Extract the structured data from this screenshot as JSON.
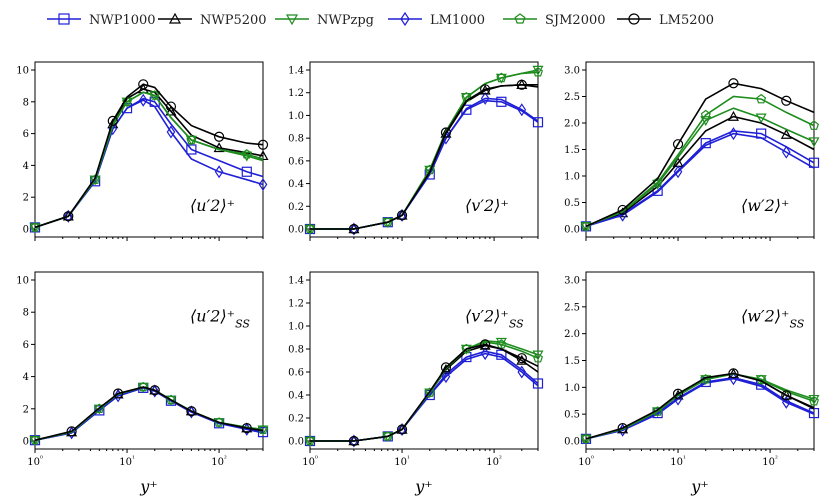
{
  "legend": [
    {
      "name": "NWP1000",
      "color": "#1f1fd6",
      "marker": "square"
    },
    {
      "name": "NWP5200",
      "color": "#000000",
      "marker": "triangle-up"
    },
    {
      "name": "NWPzpg",
      "color": "#1e8c1e",
      "marker": "triangle-down"
    },
    {
      "name": "LM1000",
      "color": "#1f1fd6",
      "marker": "diamond"
    },
    {
      "name": "SJM2000",
      "color": "#1e8c1e",
      "marker": "pentagon"
    },
    {
      "name": "LM5200",
      "color": "#000000",
      "marker": "circle"
    }
  ],
  "chart_data": [
    {
      "type": "line",
      "label": "⟨u′2⟩⁺",
      "xlabel": "",
      "xscale": "log",
      "xlim": [
        1,
        300
      ],
      "ylim": [
        0,
        10
      ],
      "yticks": [
        "0",
        "2",
        "4",
        "6",
        "8",
        "10"
      ],
      "xticks": [
        "",
        "",
        "",
        ""
      ],
      "series": [
        {
          "name": "NWP1000",
          "x": [
            1,
            2.3,
            4.5,
            7,
            10,
            15,
            20,
            30,
            50,
            100,
            200,
            300
          ],
          "y": [
            0.1,
            0.8,
            3.0,
            6.3,
            7.6,
            8.2,
            8.0,
            6.6,
            5.0,
            4.3,
            3.6,
            3.3
          ]
        },
        {
          "name": "NWP5200",
          "x": [
            1,
            2.3,
            4.5,
            7,
            10,
            15,
            20,
            30,
            50,
            100,
            200,
            300
          ],
          "y": [
            0.1,
            0.8,
            3.1,
            6.6,
            8.2,
            8.8,
            8.6,
            7.4,
            5.9,
            5.1,
            4.8,
            4.6
          ]
        },
        {
          "name": "NWPzpg",
          "x": [
            1,
            2.3,
            4.5,
            7,
            10,
            15,
            20,
            30,
            50,
            100,
            200,
            300
          ],
          "y": [
            0.1,
            0.8,
            3.1,
            6.6,
            8.0,
            8.6,
            8.4,
            7.0,
            5.6,
            5.0,
            4.6,
            4.3
          ]
        },
        {
          "name": "LM1000",
          "x": [
            1,
            2.3,
            4.5,
            7,
            10,
            15,
            20,
            30,
            50,
            100,
            200,
            300
          ],
          "y": [
            0.1,
            0.8,
            3.0,
            6.3,
            7.6,
            8.1,
            7.7,
            6.1,
            4.4,
            3.6,
            3.1,
            2.8
          ]
        },
        {
          "name": "SJM2000",
          "x": [
            1,
            2.3,
            4.5,
            7,
            10,
            15,
            20,
            30,
            50,
            100,
            200,
            300
          ],
          "y": [
            0.1,
            0.8,
            3.1,
            6.5,
            8.0,
            8.6,
            8.4,
            7.0,
            5.6,
            5.0,
            4.7,
            4.4
          ]
        },
        {
          "name": "LM5200",
          "x": [
            1,
            2.3,
            4.5,
            7,
            10,
            15,
            20,
            30,
            50,
            100,
            200,
            300
          ],
          "y": [
            0.1,
            0.8,
            3.2,
            6.8,
            8.3,
            9.1,
            8.9,
            7.7,
            6.5,
            5.8,
            5.4,
            5.3
          ]
        }
      ]
    },
    {
      "type": "line",
      "label": "⟨v′2⟩⁺",
      "xlabel": "",
      "xscale": "log",
      "xlim": [
        1,
        300
      ],
      "ylim": [
        0,
        1.4
      ],
      "yticks": [
        "0.0",
        "0.2",
        "0.4",
        "0.6",
        "0.8",
        "1.0",
        "1.2",
        "1.4"
      ],
      "xticks": [
        "",
        "",
        "",
        ""
      ],
      "series": [
        {
          "name": "NWP1000",
          "x": [
            1,
            3,
            7,
            10,
            20,
            30,
            50,
            80,
            120,
            200,
            300
          ],
          "y": [
            0.0,
            0.0,
            0.06,
            0.12,
            0.48,
            0.8,
            1.05,
            1.13,
            1.12,
            1.04,
            0.94
          ]
        },
        {
          "name": "NWP5200",
          "x": [
            1,
            3,
            7,
            10,
            20,
            30,
            50,
            80,
            120,
            200,
            300
          ],
          "y": [
            0.0,
            0.0,
            0.06,
            0.12,
            0.5,
            0.84,
            1.12,
            1.22,
            1.26,
            1.27,
            1.27
          ]
        },
        {
          "name": "NWPzpg",
          "x": [
            1,
            3,
            7,
            10,
            20,
            30,
            50,
            80,
            120,
            200,
            300
          ],
          "y": [
            0.0,
            0.0,
            0.06,
            0.12,
            0.52,
            0.86,
            1.16,
            1.28,
            1.33,
            1.37,
            1.4
          ]
        },
        {
          "name": "LM1000",
          "x": [
            1,
            3,
            7,
            10,
            20,
            30,
            50,
            80,
            120,
            200,
            300
          ],
          "y": [
            0.0,
            0.0,
            0.06,
            0.12,
            0.48,
            0.8,
            1.06,
            1.15,
            1.14,
            1.05,
            0.95
          ]
        },
        {
          "name": "SJM2000",
          "x": [
            1,
            3,
            7,
            10,
            20,
            30,
            50,
            80,
            120,
            200,
            300
          ],
          "y": [
            0.0,
            0.0,
            0.06,
            0.12,
            0.52,
            0.86,
            1.16,
            1.28,
            1.33,
            1.37,
            1.38
          ]
        },
        {
          "name": "LM5200",
          "x": [
            1,
            3,
            7,
            10,
            20,
            30,
            50,
            80,
            120,
            200,
            300
          ],
          "y": [
            0.0,
            0.0,
            0.06,
            0.12,
            0.5,
            0.85,
            1.13,
            1.23,
            1.26,
            1.27,
            1.25
          ]
        }
      ]
    },
    {
      "type": "line",
      "label": "⟨w′2⟩⁺",
      "xlabel": "",
      "xscale": "log",
      "xlim": [
        1,
        300
      ],
      "ylim": [
        0,
        3.0
      ],
      "yticks": [
        "0.0",
        "0.5",
        "1.0",
        "1.5",
        "2.0",
        "2.5",
        "3.0"
      ],
      "xticks": [
        "",
        "",
        "",
        ""
      ],
      "series": [
        {
          "name": "NWP1000",
          "x": [
            1,
            2.5,
            6,
            10,
            20,
            40,
            80,
            150,
            300
          ],
          "y": [
            0.05,
            0.28,
            0.72,
            1.1,
            1.62,
            1.85,
            1.8,
            1.55,
            1.25
          ]
        },
        {
          "name": "NWP5200",
          "x": [
            1,
            2.5,
            6,
            10,
            20,
            40,
            80,
            150,
            300
          ],
          "y": [
            0.05,
            0.3,
            0.8,
            1.25,
            1.85,
            2.12,
            2.0,
            1.78,
            1.5
          ]
        },
        {
          "name": "NWPzpg",
          "x": [
            1,
            2.5,
            6,
            10,
            20,
            40,
            80,
            150,
            300
          ],
          "y": [
            0.05,
            0.32,
            0.85,
            1.35,
            2.05,
            2.28,
            2.1,
            1.88,
            1.65
          ]
        },
        {
          "name": "LM1000",
          "x": [
            1,
            2.5,
            6,
            10,
            20,
            40,
            80,
            150,
            300
          ],
          "y": [
            0.05,
            0.26,
            0.7,
            1.08,
            1.58,
            1.8,
            1.72,
            1.45,
            1.15
          ]
        },
        {
          "name": "SJM2000",
          "x": [
            1,
            2.5,
            6,
            10,
            20,
            40,
            80,
            150,
            300
          ],
          "y": [
            0.05,
            0.33,
            0.88,
            1.4,
            2.15,
            2.5,
            2.45,
            2.2,
            1.95
          ]
        },
        {
          "name": "LM5200",
          "x": [
            1,
            2.5,
            6,
            10,
            20,
            40,
            80,
            150,
            300
          ],
          "y": [
            0.05,
            0.36,
            0.95,
            1.6,
            2.45,
            2.75,
            2.65,
            2.42,
            2.2
          ]
        }
      ]
    },
    {
      "type": "line",
      "label": "⟨u′2⟩⁺_SS",
      "xlabel": "y⁺",
      "xscale": "log",
      "xlim": [
        1,
        300
      ],
      "ylim": [
        0,
        10
      ],
      "yticks": [
        "0",
        "2",
        "4",
        "6",
        "8",
        "10"
      ],
      "xticks": [
        "10⁰",
        "10¹",
        "10²",
        ""
      ],
      "series": [
        {
          "name": "NWP1000",
          "x": [
            1,
            2.5,
            5,
            8,
            15,
            20,
            30,
            50,
            100,
            200,
            300
          ],
          "y": [
            0.05,
            0.5,
            1.9,
            2.8,
            3.3,
            3.1,
            2.5,
            1.8,
            1.1,
            0.75,
            0.55
          ]
        },
        {
          "name": "NWP5200",
          "x": [
            1,
            2.5,
            5,
            8,
            15,
            20,
            30,
            50,
            100,
            200,
            300
          ],
          "y": [
            0.05,
            0.55,
            2.0,
            2.9,
            3.35,
            3.15,
            2.55,
            1.85,
            1.15,
            0.8,
            0.65
          ]
        },
        {
          "name": "NWPzpg",
          "x": [
            1,
            2.5,
            5,
            8,
            15,
            20,
            30,
            50,
            100,
            200,
            300
          ],
          "y": [
            0.05,
            0.55,
            2.0,
            2.9,
            3.35,
            3.15,
            2.55,
            1.85,
            1.15,
            0.85,
            0.7
          ]
        },
        {
          "name": "LM1000",
          "x": [
            1,
            2.5,
            5,
            8,
            15,
            20,
            30,
            50,
            100,
            200,
            300
          ],
          "y": [
            0.05,
            0.5,
            1.9,
            2.8,
            3.3,
            3.1,
            2.5,
            1.8,
            1.1,
            0.72,
            0.5
          ]
        },
        {
          "name": "SJM2000",
          "x": [
            1,
            2.5,
            5,
            8,
            15,
            20,
            30,
            50,
            100,
            200,
            300
          ],
          "y": [
            0.05,
            0.55,
            2.0,
            2.9,
            3.35,
            3.15,
            2.55,
            1.85,
            1.15,
            0.85,
            0.7
          ]
        },
        {
          "name": "LM5200",
          "x": [
            1,
            2.5,
            5,
            8,
            15,
            20,
            30,
            50,
            100,
            200,
            300
          ],
          "y": [
            0.05,
            0.6,
            2.05,
            2.95,
            3.35,
            3.15,
            2.55,
            1.85,
            1.15,
            0.8,
            0.65
          ]
        }
      ]
    },
    {
      "type": "line",
      "label": "⟨v′2⟩⁺_SS",
      "xlabel": "y⁺",
      "xscale": "log",
      "xlim": [
        1,
        300
      ],
      "ylim": [
        0,
        1.4
      ],
      "yticks": [
        "0.0",
        "0.2",
        "0.4",
        "0.6",
        "0.8",
        "1.0",
        "1.2",
        "1.4"
      ],
      "xticks": [
        "10⁰",
        "10¹",
        "10²",
        ""
      ],
      "series": [
        {
          "name": "NWP1000",
          "x": [
            1,
            3,
            7,
            10,
            20,
            30,
            50,
            80,
            120,
            200,
            300
          ],
          "y": [
            0.0,
            0.0,
            0.04,
            0.1,
            0.4,
            0.58,
            0.73,
            0.78,
            0.75,
            0.62,
            0.5
          ]
        },
        {
          "name": "NWP5200",
          "x": [
            1,
            3,
            7,
            10,
            20,
            30,
            50,
            80,
            120,
            200,
            300
          ],
          "y": [
            0.0,
            0.0,
            0.04,
            0.1,
            0.42,
            0.62,
            0.78,
            0.83,
            0.8,
            0.7,
            0.6
          ]
        },
        {
          "name": "NWPzpg",
          "x": [
            1,
            3,
            7,
            10,
            20,
            30,
            50,
            80,
            120,
            200,
            300
          ],
          "y": [
            0.0,
            0.0,
            0.04,
            0.1,
            0.42,
            0.63,
            0.8,
            0.87,
            0.86,
            0.8,
            0.75
          ]
        },
        {
          "name": "LM1000",
          "x": [
            1,
            3,
            7,
            10,
            20,
            30,
            50,
            80,
            120,
            200,
            300
          ],
          "y": [
            0.0,
            0.0,
            0.04,
            0.1,
            0.4,
            0.56,
            0.71,
            0.76,
            0.73,
            0.6,
            0.48
          ]
        },
        {
          "name": "SJM2000",
          "x": [
            1,
            3,
            7,
            10,
            20,
            30,
            50,
            80,
            120,
            200,
            300
          ],
          "y": [
            0.0,
            0.0,
            0.04,
            0.1,
            0.42,
            0.63,
            0.8,
            0.86,
            0.84,
            0.78,
            0.72
          ]
        },
        {
          "name": "LM5200",
          "x": [
            1,
            3,
            7,
            10,
            20,
            30,
            50,
            80,
            120,
            200,
            300
          ],
          "y": [
            0.0,
            0.0,
            0.04,
            0.1,
            0.43,
            0.64,
            0.8,
            0.84,
            0.8,
            0.72,
            0.65
          ]
        }
      ]
    },
    {
      "type": "line",
      "label": "⟨w′2⟩⁺_SS",
      "xlabel": "y⁺",
      "xscale": "log",
      "xlim": [
        1,
        300
      ],
      "ylim": [
        0,
        3.0
      ],
      "yticks": [
        "0.0",
        "0.5",
        "1.0",
        "1.5",
        "2.0",
        "2.5",
        "3.0"
      ],
      "xticks": [
        "10⁰",
        "10¹",
        "10²",
        ""
      ],
      "series": [
        {
          "name": "NWP1000",
          "x": [
            1,
            2.5,
            6,
            10,
            20,
            40,
            80,
            150,
            300
          ],
          "y": [
            0.04,
            0.2,
            0.52,
            0.8,
            1.1,
            1.18,
            1.05,
            0.75,
            0.52
          ]
        },
        {
          "name": "NWP5200",
          "x": [
            1,
            2.5,
            6,
            10,
            20,
            40,
            80,
            150,
            300
          ],
          "y": [
            0.04,
            0.22,
            0.55,
            0.85,
            1.15,
            1.25,
            1.12,
            0.85,
            0.62
          ]
        },
        {
          "name": "NWPzpg",
          "x": [
            1,
            2.5,
            6,
            10,
            20,
            40,
            80,
            150,
            300
          ],
          "y": [
            0.04,
            0.22,
            0.55,
            0.85,
            1.15,
            1.25,
            1.15,
            0.95,
            0.78
          ]
        },
        {
          "name": "LM1000",
          "x": [
            1,
            2.5,
            6,
            10,
            20,
            40,
            80,
            150,
            300
          ],
          "y": [
            0.04,
            0.2,
            0.5,
            0.78,
            1.08,
            1.16,
            1.02,
            0.72,
            0.5
          ]
        },
        {
          "name": "SJM2000",
          "x": [
            1,
            2.5,
            6,
            10,
            20,
            40,
            80,
            150,
            300
          ],
          "y": [
            0.04,
            0.22,
            0.55,
            0.85,
            1.15,
            1.25,
            1.14,
            0.92,
            0.74
          ]
        },
        {
          "name": "LM5200",
          "x": [
            1,
            2.5,
            6,
            10,
            20,
            40,
            80,
            150,
            300
          ],
          "y": [
            0.04,
            0.24,
            0.58,
            0.88,
            1.18,
            1.26,
            1.12,
            0.85,
            0.6
          ]
        }
      ]
    }
  ]
}
